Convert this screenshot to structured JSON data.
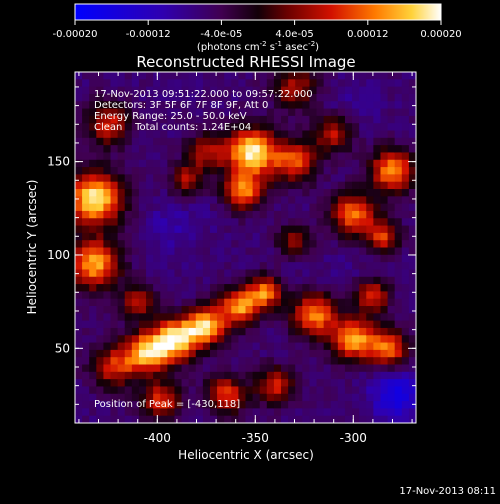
{
  "chart_data": {
    "type": "heatmap",
    "title": "Reconstructed RHESSI Image",
    "xlabel": "Heliocentric X (arcsec)",
    "ylabel": "Heliocentric Y (arcsec)",
    "xlim": [
      -442,
      -268
    ],
    "ylim": [
      10,
      198
    ],
    "x_ticks": [
      "-400",
      "-350",
      "-300"
    ],
    "x_tick_values": [
      -400,
      -350,
      -300
    ],
    "y_ticks": [
      "50",
      "100",
      "150"
    ],
    "y_tick_values": [
      50,
      100,
      150
    ],
    "colorbar": {
      "range": [
        -0.0002,
        0.0002
      ],
      "ticks": [
        "-0.00020",
        "-0.00012",
        "-4.0e-05",
        "4.0e-05",
        "0.00012",
        "0.00020"
      ],
      "tick_values": [
        -0.0002,
        -0.00012,
        -4e-05,
        4e-05,
        0.00012,
        0.0002
      ],
      "unit_text": "(photons cm",
      "unit_exp1": "-2",
      "unit_mid": " s",
      "unit_exp2": "-1",
      "unit_end": " asec",
      "unit_exp3": "-2",
      "unit_close": ")"
    },
    "annotations": [
      "17-Nov-2013 09:51:22.000 to 09:57:22.000",
      "Detectors: 3F 5F 6F 7F 8F 9F, Att 0",
      "Energy Range: 25.0 - 50.0 keV",
      "Clean    Total counts: 1.24E+04"
    ],
    "peak_label": "Position of Peak = [-430,118]",
    "peak": [
      -430,
      118
    ],
    "grid": false,
    "blobs": [
      {
        "x": -432,
        "y": 130,
        "v": 0.00019,
        "s": 10
      },
      {
        "x": -432,
        "y": 95,
        "v": 0.00015,
        "s": 9
      },
      {
        "x": -425,
        "y": 170,
        "v": 8e-05,
        "s": 8
      },
      {
        "x": -352,
        "y": 155,
        "v": 0.00019,
        "s": 9
      },
      {
        "x": -356,
        "y": 134,
        "v": 0.00012,
        "s": 7
      },
      {
        "x": -375,
        "y": 155,
        "v": 6e-05,
        "s": 7
      },
      {
        "x": -330,
        "y": 150,
        "v": 0.0001,
        "s": 8
      },
      {
        "x": -300,
        "y": 122,
        "v": 0.00012,
        "s": 8
      },
      {
        "x": -280,
        "y": 145,
        "v": 0.00014,
        "s": 8
      },
      {
        "x": -285,
        "y": 110,
        "v": 9e-05,
        "s": 6
      },
      {
        "x": -310,
        "y": 165,
        "v": 7e-05,
        "s": 7
      },
      {
        "x": -422,
        "y": 40,
        "v": 8e-05,
        "s": 8
      },
      {
        "x": -405,
        "y": 48,
        "v": 0.00016,
        "s": 8
      },
      {
        "x": -390,
        "y": 55,
        "v": 0.00017,
        "s": 8
      },
      {
        "x": -375,
        "y": 62,
        "v": 0.00016,
        "s": 7
      },
      {
        "x": -358,
        "y": 72,
        "v": 0.00014,
        "s": 7
      },
      {
        "x": -345,
        "y": 80,
        "v": 0.00012,
        "s": 6
      },
      {
        "x": -320,
        "y": 68,
        "v": 0.00013,
        "s": 8
      },
      {
        "x": -300,
        "y": 55,
        "v": 0.00015,
        "s": 8
      },
      {
        "x": -282,
        "y": 50,
        "v": 0.00012,
        "s": 7
      },
      {
        "x": -290,
        "y": 78,
        "v": 9e-05,
        "s": 6
      },
      {
        "x": -398,
        "y": 22,
        "v": 9e-05,
        "s": 7
      },
      {
        "x": -365,
        "y": 25,
        "v": 0.0001,
        "s": 7
      },
      {
        "x": -340,
        "y": 30,
        "v": 8e-05,
        "s": 7
      },
      {
        "x": -330,
        "y": 108,
        "v": 5e-05,
        "s": 6
      },
      {
        "x": -385,
        "y": 140,
        "v": 6e-05,
        "s": 6
      },
      {
        "x": -410,
        "y": 75,
        "v": 7e-05,
        "s": 6
      },
      {
        "x": -330,
        "y": 190,
        "v": 6e-05,
        "s": 8
      },
      {
        "x": -395,
        "y": 115,
        "v": -9e-05,
        "s": 10
      },
      {
        "x": -380,
        "y": 120,
        "v": -7e-05,
        "s": 9
      },
      {
        "x": -310,
        "y": 92,
        "v": -7e-05,
        "s": 9
      },
      {
        "x": -278,
        "y": 25,
        "v": -0.00016,
        "s": 9
      },
      {
        "x": -300,
        "y": 180,
        "v": -8e-05,
        "s": 10
      },
      {
        "x": -350,
        "y": 110,
        "v": -6e-05,
        "s": 8
      },
      {
        "x": -440,
        "y": 60,
        "v": -5e-05,
        "s": 7
      }
    ]
  },
  "footer": {
    "timestamp": "17-Nov-2013 08:11"
  }
}
